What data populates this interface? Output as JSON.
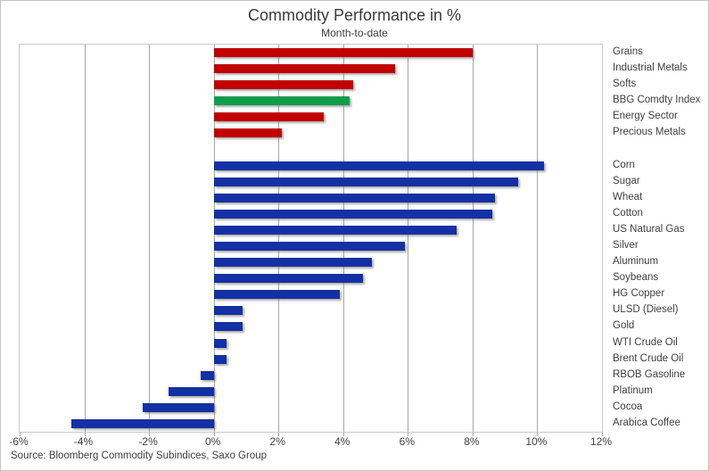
{
  "title": "Commodity Performance in %",
  "subtitle": "Month-to-date",
  "source": "Source: Bloomberg Commodity Subindices, Saxo Group",
  "colors": {
    "red": "#c00000",
    "green": "#0f9d4b",
    "blue": "#1331a3",
    "grid": "#a6a6a6",
    "plot_border": "#c9c9c9",
    "text": "#404040"
  },
  "chart_data": {
    "type": "bar",
    "orientation": "horizontal",
    "title": "Commodity Performance in %",
    "subtitle": "Month-to-date",
    "xlabel": "",
    "ylabel": "",
    "xlim": [
      -6,
      12
    ],
    "grid": true,
    "x_tick_labels": [
      "-6%",
      "-4%",
      "-2%",
      "0%",
      "2%",
      "4%",
      "6%",
      "8%",
      "10%",
      "12%"
    ],
    "x_tick_values": [
      -6,
      -4,
      -2,
      0,
      2,
      4,
      6,
      8,
      10,
      12
    ],
    "groups": [
      {
        "name": "sector-indices",
        "rows": [
          {
            "label": "Grains",
            "value": 8.0,
            "color": "red"
          },
          {
            "label": "Industrial Metals",
            "value": 5.6,
            "color": "red"
          },
          {
            "label": "Softs",
            "value": 4.3,
            "color": "red"
          },
          {
            "label": "BBG Comdty Index",
            "value": 4.2,
            "color": "green"
          },
          {
            "label": "Energy Sector",
            "value": 3.4,
            "color": "red"
          },
          {
            "label": "Precious Metals",
            "value": 2.1,
            "color": "red"
          }
        ]
      },
      {
        "name": "single-commodities",
        "rows": [
          {
            "label": "Corn",
            "value": 10.2,
            "color": "blue"
          },
          {
            "label": "Sugar",
            "value": 9.4,
            "color": "blue"
          },
          {
            "label": "Wheat",
            "value": 8.7,
            "color": "blue"
          },
          {
            "label": "Cotton",
            "value": 8.6,
            "color": "blue"
          },
          {
            "label": "US Natural Gas",
            "value": 7.5,
            "color": "blue"
          },
          {
            "label": "Silver",
            "value": 5.9,
            "color": "blue"
          },
          {
            "label": "Aluminum",
            "value": 4.9,
            "color": "blue"
          },
          {
            "label": "Soybeans",
            "value": 4.6,
            "color": "blue"
          },
          {
            "label": "HG Copper",
            "value": 3.9,
            "color": "blue"
          },
          {
            "label": "ULSD (Diesel)",
            "value": 0.9,
            "color": "blue"
          },
          {
            "label": "Gold",
            "value": 0.9,
            "color": "blue"
          },
          {
            "label": "WTI Crude Oil",
            "value": 0.4,
            "color": "blue"
          },
          {
            "label": "Brent Crude Oil",
            "value": 0.4,
            "color": "blue"
          },
          {
            "label": "RBOB Gasoline",
            "value": -0.4,
            "color": "blue"
          },
          {
            "label": "Platinum",
            "value": -1.4,
            "color": "blue"
          },
          {
            "label": "Cocoa",
            "value": -2.2,
            "color": "blue"
          },
          {
            "label": "Arabica Coffee",
            "value": -4.4,
            "color": "blue"
          }
        ]
      }
    ],
    "legend": false
  }
}
